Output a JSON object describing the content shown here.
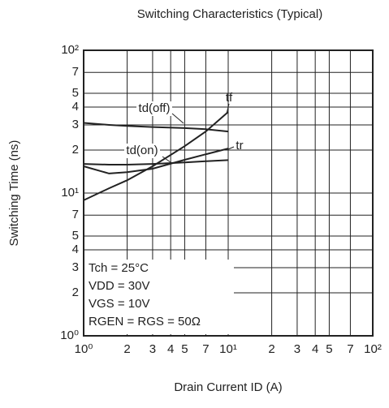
{
  "chart_data": {
    "type": "line",
    "log_x": true,
    "log_y": true,
    "grid": true,
    "title": "Switching Characteristics (Typical)",
    "x_label": "Drain Current  ID  (A)",
    "y_label": "Switching Time  (ns)",
    "xlim": [
      1,
      100
    ],
    "ylim": [
      1,
      100
    ],
    "xticks": [
      {
        "value": 1,
        "label": "10⁰"
      },
      2,
      3,
      4,
      5,
      7,
      {
        "value": 10,
        "label": "10¹"
      },
      {
        "value": 20,
        "label": "2"
      },
      {
        "value": 30,
        "label": "3"
      },
      {
        "value": 40,
        "label": "4"
      },
      {
        "value": 50,
        "label": "5"
      },
      {
        "value": 70,
        "label": "7"
      },
      {
        "value": 100,
        "label": "10²"
      }
    ],
    "yticks": [
      {
        "value": 1,
        "label": "10⁰"
      },
      2,
      3,
      4,
      5,
      7,
      {
        "value": 10,
        "label": "10¹"
      },
      {
        "value": 20,
        "label": "2"
      },
      {
        "value": 30,
        "label": "3"
      },
      {
        "value": 40,
        "label": "4"
      },
      {
        "value": 50,
        "label": "5"
      },
      {
        "value": 70,
        "label": "7"
      },
      {
        "value": 100,
        "label": "10²"
      }
    ],
    "x": [
      1,
      1.5,
      2,
      3,
      5,
      7,
      10
    ],
    "series": [
      {
        "name": "td(off)",
        "color": "#222222",
        "values": [
          31,
          30,
          29.5,
          29,
          28.5,
          28,
          27
        ]
      },
      {
        "name": "tf",
        "color": "#222222",
        "values": [
          8.9,
          10.8,
          12.3,
          15.4,
          21.3,
          27,
          37
        ]
      },
      {
        "name": "td(on)",
        "color": "#222222",
        "values": [
          16,
          15.8,
          15.8,
          16,
          16.4,
          16.7,
          17
        ]
      },
      {
        "name": "tr",
        "color": "#222222",
        "values": [
          15.4,
          13.7,
          14,
          14.8,
          17.1,
          18.7,
          20.5
        ]
      }
    ],
    "annotations": [
      "Tch = 25°C",
      "VDD = 30V",
      "VGS = 10V",
      "RGEN = RGS = 50Ω"
    ]
  }
}
